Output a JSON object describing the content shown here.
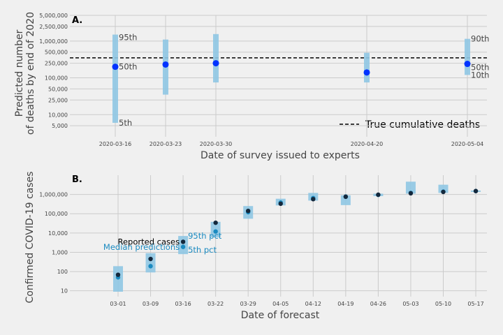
{
  "colors": {
    "background": "#f0f0f0",
    "grid": "#cbcbcb",
    "interval": "#8fc6e3",
    "median_point_a": "#0033ff",
    "reported_point": "#14283c",
    "median_point_b": "#1a8ac0",
    "median_text_b": "#1a8ac0",
    "true_line": "#000000"
  },
  "chart_data": [
    {
      "panel_label": "A.",
      "type": "scatter",
      "scale_y": "log",
      "xlabel": "Date of survey issued to experts",
      "ylabel_lines": [
        "Predicted number",
        "of deaths by end of 2020"
      ],
      "x_ticks": [
        "2020-03-16",
        "2020-03-23",
        "2020-03-30",
        "2020-04-20",
        "2020-05-04"
      ],
      "y_ticks": [
        "5,000",
        "10,000",
        "25,000",
        "50,000",
        "100,000",
        "250,000",
        "500,000",
        "1,000,000",
        "2,500,000",
        "5,000,000"
      ],
      "ylim": [
        2500,
        5000000
      ],
      "true_cumulative_deaths": 350000,
      "legend": {
        "label": "True cumulative deaths",
        "position": "bottom-right"
      },
      "points": [
        {
          "date": "2020-03-16",
          "low": 6000,
          "high": 1500000,
          "median": 200000
        },
        {
          "date": "2020-03-23",
          "low": 35000,
          "high": 1100000,
          "median": 230000
        },
        {
          "date": "2020-03-30",
          "low": 75000,
          "high": 1550000,
          "median": 250000
        },
        {
          "date": "2020-04-20",
          "low": 75000,
          "high": 480000,
          "median": 140000
        },
        {
          "date": "2020-05-04",
          "low": 120000,
          "high": 1150000,
          "median": 240000
        }
      ],
      "annotations_first": {
        "high": "95th",
        "median": "50th",
        "low": "5th"
      },
      "annotations_last": {
        "high": "90th",
        "median": "50th",
        "low": "10th"
      }
    },
    {
      "panel_label": "B.",
      "type": "scatter",
      "scale_y": "log",
      "xlabel": "Date of forecast",
      "ylabel": "Confirmed COVID-19 cases",
      "x_ticks": [
        "03-01",
        "03-09",
        "03-16",
        "03-22",
        "03-29",
        "04-05",
        "04-12",
        "04-19",
        "04-26",
        "05-03",
        "05-10",
        "05-17"
      ],
      "y_ticks": [
        "10",
        "100",
        "1,000",
        "10,000",
        "100,000",
        "1,000,000"
      ],
      "ylim": [
        5,
        10000000
      ],
      "points": [
        {
          "date": "03-01",
          "low": 9,
          "high": 190,
          "reported": 68,
          "median": 50
        },
        {
          "date": "03-09",
          "low": 90,
          "high": 900,
          "reported": 450,
          "median": 190
        },
        {
          "date": "03-16",
          "low": 800,
          "high": 7000,
          "reported": 3500,
          "median": 1900
        },
        {
          "date": "03-22",
          "low": 6000,
          "high": 38000,
          "reported": 34000,
          "median": 12000
        },
        {
          "date": "03-29",
          "low": 55000,
          "high": 250000,
          "reported": 140000,
          "median": 120000
        },
        {
          "date": "04-05",
          "low": 270000,
          "high": 600000,
          "reported": 330000,
          "median": 380000
        },
        {
          "date": "04-12",
          "low": 480000,
          "high": 1200000,
          "reported": 570000,
          "median": 650000
        },
        {
          "date": "04-19",
          "low": 280000,
          "high": 900000,
          "reported": 760000,
          "median": 780000
        },
        {
          "date": "04-26",
          "low": 820000,
          "high": 1100000,
          "reported": 970000,
          "median": 950000
        },
        {
          "date": "05-03",
          "low": 1100000,
          "high": 4600000,
          "reported": 1150000,
          "median": 1200000
        },
        {
          "date": "05-10",
          "low": 1200000,
          "high": 3200000,
          "reported": 1350000,
          "median": 1400000
        },
        {
          "date": "05-17",
          "low": 1400000,
          "high": 1600000,
          "reported": 1500000,
          "median": 1500000
        }
      ],
      "annotations": {
        "reported": "Reported cases",
        "median": "Median predictions",
        "high": "95th pct",
        "low": "5th pct"
      }
    }
  ]
}
